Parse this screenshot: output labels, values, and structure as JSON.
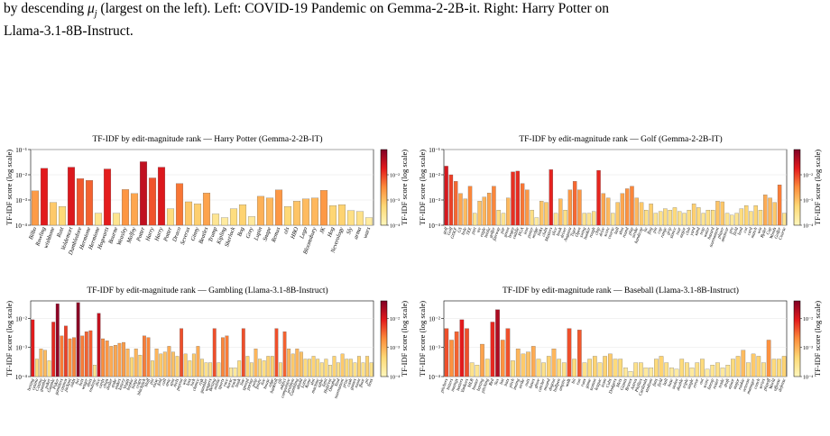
{
  "caption": {
    "line1": "by descending μ_j (largest on the left). Left: COVID-19 Pandemic on Gemma-2-2B-it. Right: Harry Potter on",
    "line2": "Llama-3.1-8B-Instruct."
  },
  "chart_data": [
    {
      "type": "bar",
      "title": "TF-IDF by edit-magnitude rank — Harry Potter (Gemma-2-2B-IT)",
      "ylabel": "TF-IDF score (log scale)",
      "colorbar_label": "TF-IDF score (log scale)",
      "yscale": "log",
      "ylim": [
        0.0001,
        0.1
      ],
      "yticks": [
        "10⁻⁴",
        "10⁻³",
        "10⁻²",
        "10⁻¹"
      ],
      "colorbar_ticks": [
        "10⁻⁴",
        "10⁻³",
        "10⁻²"
      ],
      "categories": [
        "Bilbo",
        "Rowling",
        "wishbone",
        "Rust",
        "Voldemort",
        "Dumbledore",
        "Hermione",
        "Hermione",
        "Hogwarts",
        "Bourne",
        "Weasley",
        "Malfoy",
        "Potter",
        "Harry",
        "Harry",
        "Potter",
        "Draco",
        "Severus",
        "Ginny",
        "Beatles",
        "Trump",
        "Kipling",
        "Sherlock",
        "Bog",
        "Grey",
        "Lupin",
        "Snape",
        "Remus",
        "ols",
        "HBO",
        "Lego",
        "Bloomsbury",
        "JK",
        "Hog",
        "Neverology",
        "Sly",
        "arma",
        "wars"
      ],
      "values": [
        0.0023,
        0.018,
        0.0008,
        0.00055,
        0.02,
        0.007,
        0.006,
        0.0003,
        0.017,
        0.0003,
        0.0026,
        0.0018,
        0.033,
        0.0075,
        0.02,
        0.00045,
        0.0045,
        0.00085,
        0.0007,
        0.0019,
        0.00028,
        0.0002,
        0.00045,
        0.00065,
        0.00022,
        0.0014,
        0.0012,
        0.0025,
        0.00055,
        0.0009,
        0.0011,
        0.0012,
        0.0024,
        0.0006,
        0.00065,
        0.00038,
        0.00035,
        0.0002
      ]
    },
    {
      "type": "bar",
      "title": "TF-IDF by edit-magnitude rank — Golf (Gemma-2-2B-IT)",
      "ylabel": "TF-IDF score (log scale)",
      "colorbar_label": "TF-IDF score (log scale)",
      "yscale": "log",
      "ylim": [
        0.0001,
        0.1
      ],
      "yticks": [
        "10⁻⁴",
        "10⁻³",
        "10⁻²",
        "10⁻¹"
      ],
      "colorbar_ticks": [
        "10⁻⁴",
        "10⁻³",
        "10⁻²"
      ],
      "categories": [
        "golf",
        "Golf",
        "GOLF",
        "GS",
        "hole",
        "TEE",
        "putt",
        "tee",
        "eagle",
        "birdie",
        "golfer",
        "fairway",
        "par",
        "green",
        "bogey",
        "caddie",
        "PGA",
        "iron",
        "putter",
        "wedge",
        "links",
        "clubs",
        "Masters",
        "slice",
        "hook",
        "driver",
        "Augusta",
        "Tiger",
        "Open",
        "swing",
        "bunker",
        "rough",
        "chip",
        "drive",
        "score",
        "course",
        "ball",
        "shot",
        "round",
        "play",
        "stroke",
        "handicap",
        "lie",
        "flag",
        "pin",
        "cup",
        "range",
        "grip",
        "stance",
        "tour",
        "major",
        "club",
        "yard",
        "sand",
        "trap",
        "water",
        "hazard",
        "tournament",
        "player",
        "amateur",
        "pro",
        "field",
        "lead",
        "cut",
        "card",
        "match",
        "win",
        "Ryder",
        "Cup",
        "Woods",
        "Golfer",
        "Course"
      ],
      "values": [
        0.022,
        0.01,
        0.0055,
        0.0018,
        0.0011,
        0.0035,
        0.0003,
        0.0009,
        0.0013,
        0.0019,
        0.0035,
        0.0004,
        0.0003,
        0.0012,
        0.013,
        0.014,
        0.0045,
        0.0025,
        0.0004,
        0.0002,
        0.0009,
        0.0008,
        0.016,
        0.0003,
        0.0011,
        0.0004,
        0.0025,
        0.0055,
        0.0025,
        0.0003,
        0.0003,
        0.00035,
        0.015,
        0.0018,
        0.0012,
        0.0003,
        0.0008,
        0.0018,
        0.0028,
        0.0035,
        0.0012,
        0.0008,
        0.0004,
        0.0007,
        0.0003,
        0.00035,
        0.00045,
        0.0004,
        0.0005,
        0.00035,
        0.0003,
        0.0004,
        0.0007,
        0.0005,
        0.0003,
        0.0004,
        0.0004,
        0.0009,
        0.00085,
        0.0003,
        0.00025,
        0.0003,
        0.00045,
        0.0006,
        0.00035,
        0.0006,
        0.0004,
        0.0016,
        0.0012,
        0.0008,
        0.004,
        0.0003
      ]
    },
    {
      "type": "bar",
      "title": "TF-IDF by edit-magnitude rank — Gambling (Llama-3.1-8B-Instruct)",
      "ylabel": "TF-IDF score (log scale)",
      "colorbar_label": "TF-IDF score (log scale)",
      "yscale": "log",
      "ylim": [
        0.0001,
        0.04
      ],
      "yticks": [
        "10⁻⁴",
        "10⁻³",
        "10⁻²"
      ],
      "colorbar_ticks": [
        "10⁻⁴",
        "10⁻³",
        "10⁻²"
      ],
      "categories": [
        "betting",
        "casino",
        "Casino",
        "gamble",
        "poker",
        "Gamble",
        "Poker",
        "gamblers",
        "casinos",
        "jackpot",
        "odds",
        "bet",
        "bets",
        "wager",
        "slots",
        "roulette",
        "dice",
        "cards",
        "chips",
        "dealer",
        "stake",
        "stakes",
        "lottery",
        "Vegas",
        "bookie",
        "bingo",
        "craps",
        "blackjack",
        "bluff",
        "pot",
        "raise",
        "fold",
        "call",
        "ante",
        "spin",
        "reels",
        "payout",
        "win",
        "loss",
        "luck",
        "chance",
        "risk",
        "gambler",
        "wagers",
        "Betting",
        "online",
        "sports",
        "race",
        "horse",
        "track",
        "book",
        "line",
        "spread",
        "parlay",
        "prop",
        "future",
        "live",
        "house",
        "edge",
        "bankroll",
        "tilt",
        "addict",
        "compulsive",
        "problem",
        "Gambling",
        "ahead",
        "Lotto",
        "Keno",
        "slot",
        "machine",
        "table",
        "limit",
        "Hold'em",
        "Omaha",
        "Stud",
        "tournament",
        "prize",
        "cash",
        "games",
        "room",
        "floor",
        "pit",
        "boss"
      ],
      "values": [
        0.009,
        0.0004,
        0.0009,
        0.0008,
        0.00035,
        0.0075,
        0.032,
        0.0025,
        0.0055,
        0.002,
        0.0022,
        0.035,
        0.0025,
        0.0035,
        0.0038,
        0.00025,
        0.015,
        0.002,
        0.0017,
        0.0011,
        0.0012,
        0.0014,
        0.0015,
        0.0009,
        0.00045,
        0.0009,
        0.00055,
        0.0025,
        0.0022,
        0.00035,
        0.0009,
        0.0006,
        0.0007,
        0.0011,
        0.0007,
        0.0005,
        0.0045,
        0.0006,
        0.00035,
        0.0006,
        0.0011,
        0.0004,
        0.0003,
        0.0003,
        0.0045,
        0.0003,
        0.0022,
        0.0025,
        0.0002,
        0.0002,
        0.00035,
        0.0045,
        0.0005,
        0.0003,
        0.0009,
        0.0004,
        0.00035,
        0.0005,
        0.0005,
        0.0045,
        0.0003,
        0.0035,
        0.0009,
        0.0006,
        0.0009,
        0.0007,
        0.0004,
        0.0004,
        0.0005,
        0.0004,
        0.0003,
        0.0004,
        0.00025,
        0.0005,
        0.0003,
        0.0006,
        0.0004,
        0.0004,
        0.0003,
        0.0005,
        0.0003,
        0.0005,
        0.0003
      ]
    },
    {
      "type": "bar",
      "title": "TF-IDF by edit-magnitude rank — Baseball (Llama-3.1-8B-Instruct)",
      "ylabel": "TF-IDF score (log scale)",
      "colorbar_label": "TF-IDF score (log scale)",
      "yscale": "log",
      "ylim": [
        0.0001,
        0.04
      ],
      "yticks": [
        "10⁻⁴",
        "10⁻³",
        "10⁻²"
      ],
      "colorbar_ticks": [
        "10⁻⁴",
        "10⁻³",
        "10⁻²"
      ],
      "categories": [
        "pitchers",
        "hitters",
        "innings",
        "batters",
        "Yankees",
        "MLB",
        "homer",
        "batting",
        "pitching",
        "Red",
        "Sox",
        "bat",
        "bats",
        "pitch",
        "inning",
        "strike",
        "outs",
        "bases",
        "glove",
        "catcher",
        "mound",
        "dugout",
        "bullpen",
        "umpire",
        "walk",
        "hit",
        "run",
        "runs",
        "game",
        "season",
        "league",
        "team",
        "Cubs",
        "Dodgers",
        "Mets",
        "Giants",
        "Braves",
        "Astros",
        "Phillies",
        "Cardinals",
        "stadium",
        "fans",
        "field",
        "ball",
        "base",
        "stolen",
        "double",
        "triple",
        "single",
        "error",
        "out",
        "score",
        "lineup",
        "roster",
        "trade",
        "draft",
        "minor",
        "major",
        "rookie",
        "veteran",
        "manager",
        "coach",
        "series",
        "playoff",
        "World",
        "offense",
        "defense"
      ],
      "values": [
        0.0045,
        0.0018,
        0.0035,
        0.009,
        0.0045,
        0.0003,
        0.00025,
        0.0013,
        0.0004,
        0.0075,
        0.02,
        0.0018,
        0.0045,
        0.00035,
        0.0009,
        0.0006,
        0.0007,
        0.0011,
        0.0004,
        0.0003,
        0.0005,
        0.0009,
        0.0004,
        0.0003,
        0.0045,
        0.0004,
        0.004,
        0.0003,
        0.0004,
        0.0005,
        0.0003,
        0.0005,
        0.0006,
        0.0004,
        0.0004,
        0.0002,
        0.00015,
        0.0003,
        0.0003,
        0.0002,
        0.0002,
        0.0004,
        0.0005,
        0.0003,
        0.0002,
        0.00018,
        0.0004,
        0.0003,
        0.0002,
        0.0003,
        0.0004,
        0.00018,
        0.00025,
        0.0003,
        0.0002,
        0.00025,
        0.0004,
        0.0005,
        0.0008,
        0.0003,
        0.0006,
        0.0005,
        0.0003,
        0.0018,
        0.0004,
        0.0004,
        0.0005
      ]
    }
  ],
  "colors": {
    "low": "#fff7bc",
    "mid": "#fd8d3c",
    "high": "#800026",
    "grid": "#e6e6e6"
  }
}
